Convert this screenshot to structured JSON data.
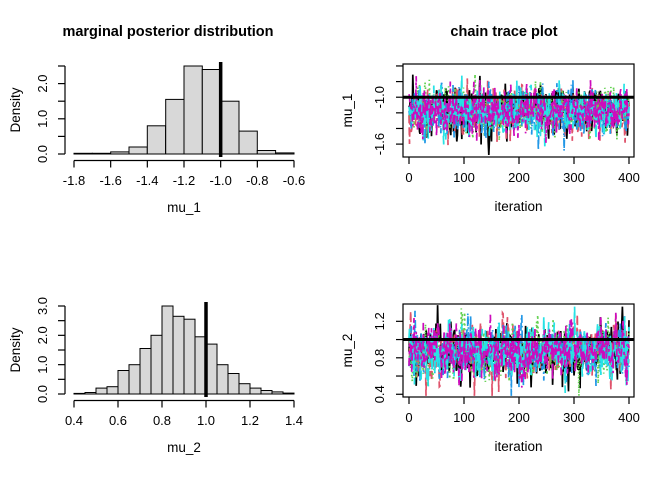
{
  "figure": {
    "background": "#ffffff",
    "text_color": "#000000"
  },
  "chart_data": [
    {
      "id": "hist_mu1",
      "type": "bar",
      "title": "marginal posterior distribution",
      "xlabel": "mu_1",
      "ylabel": "Density",
      "bin_start": -1.8,
      "bin_width": 0.1,
      "densities": [
        0.02,
        0.02,
        0.06,
        0.2,
        0.8,
        1.55,
        2.5,
        2.4,
        1.5,
        0.65,
        0.1,
        0.03
      ],
      "xlim": [
        -1.8,
        -0.6
      ],
      "ylim": [
        0,
        2.5
      ],
      "xticks": [
        {
          "v": -1.8,
          "label": "-1.8"
        },
        {
          "v": -1.6,
          "label": "-1.6"
        },
        {
          "v": -1.4,
          "label": "-1.4"
        },
        {
          "v": -1.2,
          "label": "-1.2"
        },
        {
          "v": -1.0,
          "label": "-1.0"
        },
        {
          "v": -0.8,
          "label": "-0.8"
        },
        {
          "v": -0.6,
          "label": "-0.6"
        }
      ],
      "yticks": [
        {
          "v": 0,
          "label": "0.0"
        },
        {
          "v": 0.5,
          "label": ""
        },
        {
          "v": 1,
          "label": "1.0"
        },
        {
          "v": 1.5,
          "label": ""
        },
        {
          "v": 2,
          "label": "2.0"
        },
        {
          "v": 2.5,
          "label": ""
        }
      ],
      "true_value_line": -1.0,
      "bar_fill": "#d8d8d8",
      "bar_stroke": "#000000",
      "line_color": "#000000"
    },
    {
      "id": "trace_mu1",
      "type": "line",
      "title": "chain trace plot",
      "xlabel": "iteration",
      "ylabel": "mu_1",
      "n_iterations": 400,
      "n_chains": 6,
      "chain_colors": [
        "#000000",
        "#DF536B",
        "#61D04F",
        "#2297E6",
        "#28E2E5",
        "#CD0BBC"
      ],
      "chain_mean": -1.17,
      "chain_sd": 0.155,
      "ar_phi": 0.25,
      "seed": 42,
      "hline": -1.0,
      "hline_color": "#000000",
      "xlim": [
        0,
        400
      ],
      "ylim": [
        -1.765,
        -0.575
      ],
      "xticks": [
        {
          "v": 0,
          "label": "0"
        },
        {
          "v": 100,
          "label": "100"
        },
        {
          "v": 200,
          "label": "200"
        },
        {
          "v": 300,
          "label": "300"
        },
        {
          "v": 400,
          "label": "400"
        }
      ],
      "yticks": [
        {
          "v": -1.6,
          "label": "-1.6"
        },
        {
          "v": -1.4,
          "label": ""
        },
        {
          "v": -1.2,
          "label": ""
        },
        {
          "v": -1.0,
          "label": "-1.0"
        },
        {
          "v": -0.8,
          "label": ""
        },
        {
          "v": -0.6,
          "label": ""
        }
      ],
      "spikes": [
        {
          "chain": 0,
          "t": 145,
          "value": -1.74
        },
        {
          "chain": 4,
          "t": 247,
          "value": -1.63
        }
      ]
    },
    {
      "id": "hist_mu2",
      "type": "bar",
      "title": "",
      "xlabel": "mu_2",
      "ylabel": "Density",
      "bin_start": 0.4,
      "bin_width": 0.05,
      "densities": [
        0.02,
        0.05,
        0.2,
        0.25,
        0.8,
        1.0,
        1.55,
        2.0,
        3.0,
        2.65,
        2.55,
        1.95,
        1.7,
        1.0,
        0.7,
        0.35,
        0.2,
        0.12,
        0.07,
        0.03
      ],
      "xlim": [
        0.4,
        1.4
      ],
      "ylim": [
        0,
        3
      ],
      "xticks": [
        {
          "v": 0.4,
          "label": "0.4"
        },
        {
          "v": 0.6,
          "label": "0.6"
        },
        {
          "v": 0.8,
          "label": "0.8"
        },
        {
          "v": 1.0,
          "label": "1.0"
        },
        {
          "v": 1.2,
          "label": "1.2"
        },
        {
          "v": 1.4,
          "label": "1.4"
        }
      ],
      "yticks": [
        {
          "v": 0,
          "label": "0.0"
        },
        {
          "v": 0.5,
          "label": ""
        },
        {
          "v": 1,
          "label": "1.0"
        },
        {
          "v": 1.5,
          "label": ""
        },
        {
          "v": 2,
          "label": "2.0"
        },
        {
          "v": 2.5,
          "label": ""
        },
        {
          "v": 3,
          "label": "3.0"
        }
      ],
      "true_value_line": 1.0,
      "bar_fill": "#d8d8d8",
      "bar_stroke": "#000000",
      "line_color": "#000000"
    },
    {
      "id": "trace_mu2",
      "type": "line",
      "title": "",
      "xlabel": "iteration",
      "ylabel": "mu_2",
      "n_iterations": 400,
      "n_chains": 6,
      "chain_colors": [
        "#000000",
        "#DF536B",
        "#61D04F",
        "#2297E6",
        "#28E2E5",
        "#CD0BBC"
      ],
      "chain_mean": 0.87,
      "chain_sd": 0.155,
      "ar_phi": 0.25,
      "seed": 77,
      "hline": 1.0,
      "hline_color": "#000000",
      "xlim": [
        0,
        400
      ],
      "ylim": [
        0.37,
        1.39
      ],
      "xticks": [
        {
          "v": 0,
          "label": "0"
        },
        {
          "v": 100,
          "label": "100"
        },
        {
          "v": 200,
          "label": "200"
        },
        {
          "v": 300,
          "label": "300"
        },
        {
          "v": 400,
          "label": "400"
        }
      ],
      "yticks": [
        {
          "v": 0.4,
          "label": "0.4"
        },
        {
          "v": 0.6,
          "label": ""
        },
        {
          "v": 0.8,
          "label": "0.8"
        },
        {
          "v": 1.0,
          "label": ""
        },
        {
          "v": 1.2,
          "label": "1.2"
        }
      ],
      "spikes": [
        {
          "chain": 0,
          "t": 388,
          "value": 1.36
        },
        {
          "chain": 5,
          "t": 396,
          "value": 0.5
        }
      ]
    }
  ]
}
